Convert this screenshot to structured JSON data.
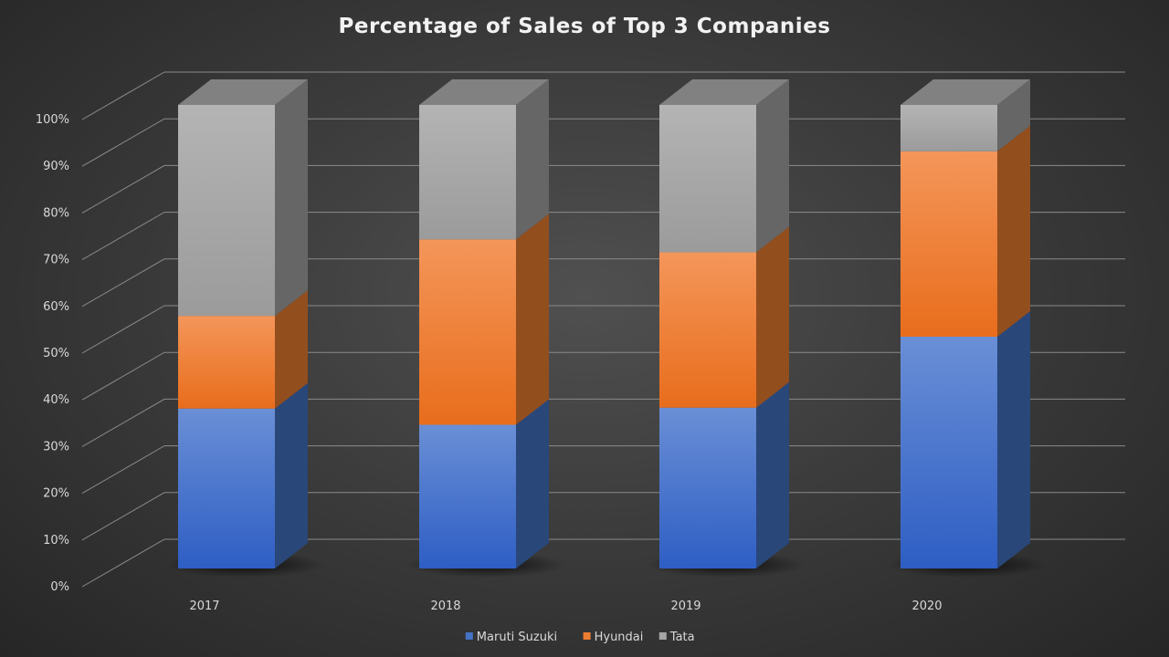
{
  "chart_data": {
    "type": "bar",
    "stacked": true,
    "three_d": true,
    "title": "Percentage of Sales of Top 3 Companies",
    "categories": [
      "2017",
      "2018",
      "2019",
      "2020"
    ],
    "series": [
      {
        "name": "Maruti Suzuki",
        "color": "#4472c4",
        "values": [
          34.5,
          31,
          34.7,
          50
        ]
      },
      {
        "name": "Hyundai",
        "color": "#ed7d31",
        "values": [
          20,
          40,
          33.5,
          40
        ]
      },
      {
        "name": "Tata",
        "color": "#a5a5a5",
        "values": [
          45.5,
          29,
          31.8,
          10
        ]
      }
    ],
    "ylim": [
      0,
      100
    ],
    "yticks": [
      "0%",
      "10%",
      "20%",
      "30%",
      "40%",
      "50%",
      "60%",
      "70%",
      "80%",
      "90%",
      "100%"
    ],
    "grid": true,
    "legend": "bottom"
  }
}
